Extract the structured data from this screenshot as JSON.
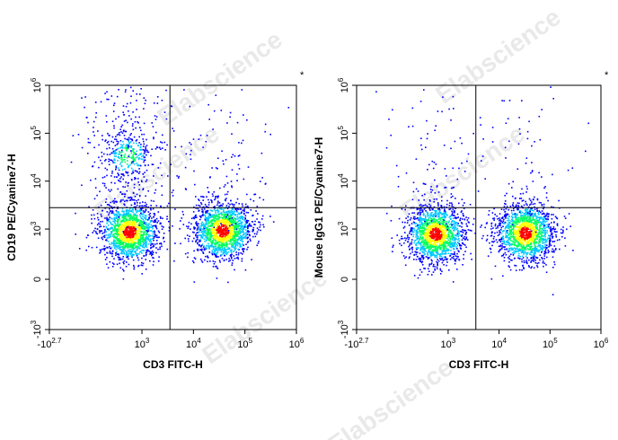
{
  "watermark": "Elabscience",
  "colors": {
    "low": "#0000ff",
    "mid1": "#00c8ff",
    "mid2": "#00ff60",
    "mid3": "#ffff00",
    "high": "#ff0000",
    "gate": "#000000"
  },
  "chart_data": [
    {
      "type": "scatter",
      "scale": "biexponential",
      "xlabel": "CD3 FITC-H",
      "ylabel": "CD19 PE/Cyanine7-H",
      "corner_mark": "*",
      "x_ticks": [
        "-10^2.7",
        "10^3",
        "10^4",
        "10^5",
        "10^6"
      ],
      "y_ticks": [
        "-10^3",
        "0",
        "10^3",
        "10^4",
        "10^5",
        "10^6"
      ],
      "gate": {
        "x": 3500,
        "y": 2800
      },
      "populations": [
        {
          "x": 560,
          "y": 900,
          "level": "high"
        },
        {
          "x": 36000,
          "y": 950,
          "level": "high"
        },
        {
          "x": 520,
          "y": 35000,
          "level": "mid"
        }
      ]
    },
    {
      "type": "scatter",
      "scale": "biexponential",
      "xlabel": "CD3 FITC-H",
      "ylabel": "Mouse IgG1 PE/Cyanine7-H",
      "corner_mark": "*",
      "x_ticks": [
        "-10^2.7",
        "10^3",
        "10^4",
        "10^5",
        "10^6"
      ],
      "y_ticks": [
        "-10^3",
        "0",
        "10^3",
        "10^4",
        "10^5",
        "10^6"
      ],
      "gate": {
        "x": 3500,
        "y": 2800
      },
      "populations": [
        {
          "x": 560,
          "y": 800,
          "level": "high"
        },
        {
          "x": 32000,
          "y": 850,
          "level": "high"
        }
      ]
    }
  ]
}
